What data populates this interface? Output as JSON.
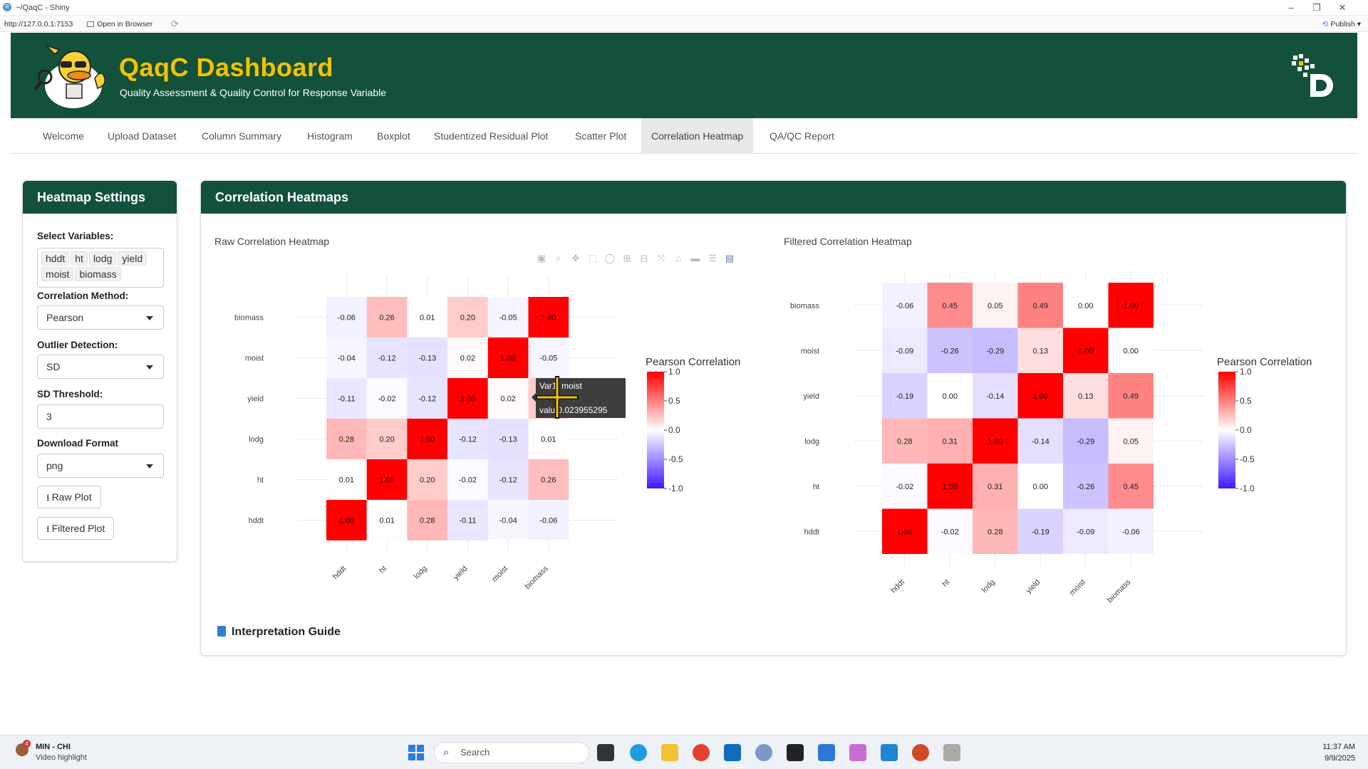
{
  "window": {
    "title": "~/QaqC - Shiny",
    "url": "http://127.0.0.1:7153",
    "open_in_browser": "Open in Browser",
    "publish": "Publish"
  },
  "header": {
    "title": "QaqC Dashboard",
    "subtitle": "Quality Assessment & Quality Control for Response Variable"
  },
  "nav": {
    "tabs": [
      {
        "label": "Welcome"
      },
      {
        "label": "Upload Dataset"
      },
      {
        "label": "Column Summary"
      },
      {
        "label": "Histogram"
      },
      {
        "label": "Boxplot"
      },
      {
        "label": "Studentized Residual Plot"
      },
      {
        "label": "Scatter Plot"
      },
      {
        "label": "Correlation Heatmap",
        "active": true
      },
      {
        "label": "QA/QC Report"
      }
    ]
  },
  "sidebar": {
    "title": "Heatmap Settings",
    "select_variables_label": "Select Variables:",
    "variables": [
      "hddt",
      "ht",
      "lodg",
      "yield",
      "moist",
      "biomass"
    ],
    "method_label": "Correlation Method:",
    "method_value": "Pearson",
    "outlier_label": "Outlier Detection:",
    "outlier_value": "SD",
    "threshold_label": "SD Threshold:",
    "threshold_value": "3",
    "format_label": "Download Format",
    "format_value": "png",
    "raw_button": "Raw Plot",
    "filtered_button": "Filtered Plot"
  },
  "main": {
    "title": "Correlation Heatmaps",
    "guide": "Interpretation Guide"
  },
  "colors": {
    "header": "#14513a",
    "title": "#f5c200",
    "positive": "#ff0000",
    "negative": "#3b1aff"
  },
  "tooltip": {
    "var1_label": "Var1:",
    "var1_value": "moist",
    "value_label": "valu",
    "value": "0.023955295"
  },
  "chart_data": [
    {
      "type": "heatmap",
      "title": "Raw Correlation Heatmap",
      "x": [
        "hddt",
        "ht",
        "lodg",
        "yield",
        "moist",
        "biomass"
      ],
      "y": [
        "hddt",
        "ht",
        "lodg",
        "yield",
        "moist",
        "biomass"
      ],
      "values": [
        [
          1.0,
          0.01,
          0.28,
          -0.11,
          -0.04,
          -0.06
        ],
        [
          0.01,
          1.0,
          0.2,
          -0.02,
          -0.12,
          0.26
        ],
        [
          0.28,
          0.2,
          1.0,
          -0.12,
          -0.13,
          0.01
        ],
        [
          -0.11,
          -0.02,
          -0.12,
          1.0,
          0.02,
          0.2
        ],
        [
          -0.04,
          -0.12,
          -0.13,
          0.02,
          1.0,
          -0.05
        ],
        [
          -0.06,
          0.26,
          0.01,
          0.2,
          -0.05,
          1.0
        ]
      ],
      "colorbar_title": "Pearson Correlation",
      "colorbar_ticks": [
        "1.0",
        "0.5",
        "0.0",
        "-0.5",
        "-1.0"
      ],
      "zlim": [
        -1,
        1
      ]
    },
    {
      "type": "heatmap",
      "title": "Filtered Correlation Heatmap",
      "x": [
        "hddt",
        "ht",
        "lodg",
        "yield",
        "moist",
        "biomass"
      ],
      "y": [
        "hddt",
        "ht",
        "lodg",
        "yield",
        "moist",
        "biomass"
      ],
      "values": [
        [
          1.0,
          -0.02,
          0.28,
          -0.19,
          -0.09,
          -0.06
        ],
        [
          -0.02,
          1.0,
          0.31,
          -0.0,
          -0.26,
          0.45
        ],
        [
          0.28,
          0.31,
          1.0,
          -0.14,
          -0.29,
          0.05
        ],
        [
          -0.19,
          -0.0,
          -0.14,
          1.0,
          0.13,
          0.49
        ],
        [
          -0.09,
          -0.26,
          -0.29,
          0.13,
          1.0,
          0.0
        ],
        [
          -0.06,
          0.45,
          0.05,
          0.49,
          0.0,
          1.0
        ]
      ],
      "colorbar_title": "Pearson Correlation",
      "colorbar_ticks": [
        "1.0",
        "0.5",
        "0.0",
        "-0.5",
        "-1.0"
      ],
      "zlim": [
        -1,
        1
      ]
    }
  ],
  "taskbar": {
    "notif_title": "MIN - CHI",
    "notif_sub": "Video highlight",
    "notif_count": "4",
    "search": "Search",
    "time": "11:37 AM",
    "date": "9/9/2025"
  }
}
